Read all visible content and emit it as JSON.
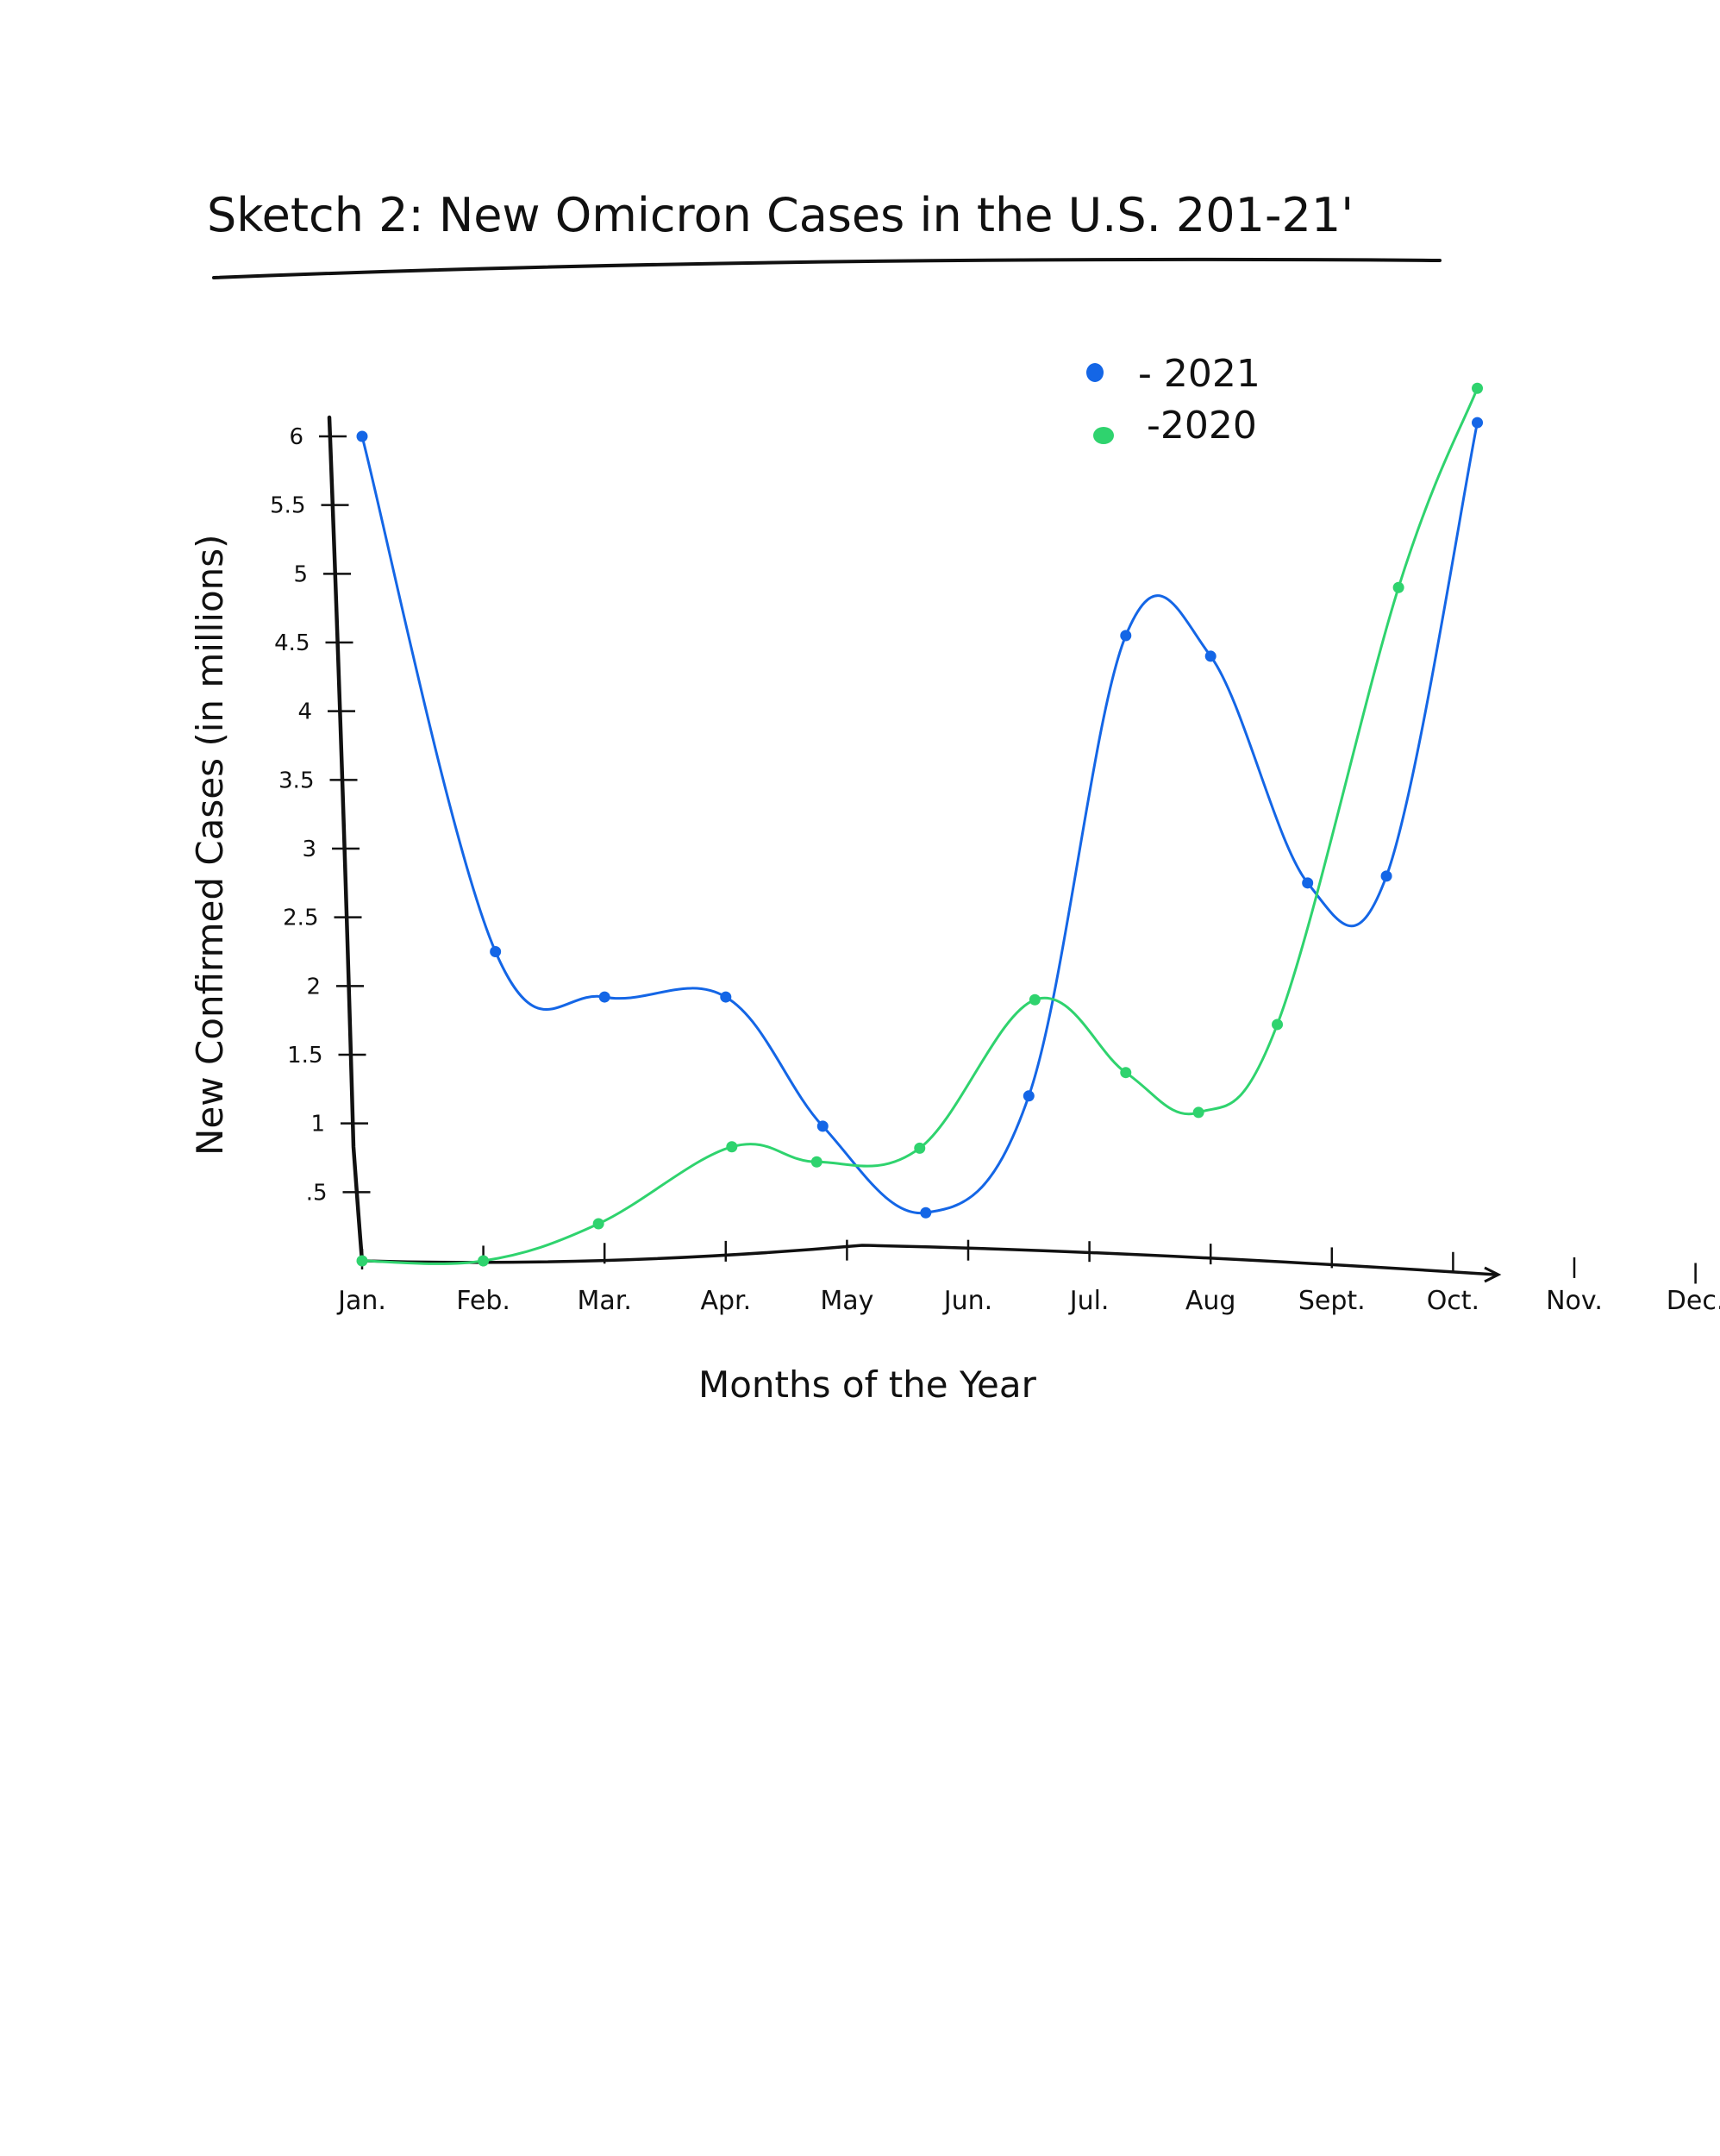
{
  "colors": {
    "s2021": "#1466e6",
    "s2020": "#2fd36e",
    "axis": "#111111"
  },
  "chart_data": {
    "type": "line",
    "title": "Sketch 2: New Omicron Cases in the U.S. 201-21'",
    "xlabel": "Months of the Year",
    "ylabel": "New Confirmed Cases (in millions)",
    "categories": [
      "Jan.",
      "Feb.",
      "Mar.",
      "Apr.",
      "May",
      "Jun.",
      "Jul.",
      "Aug",
      "Sept.",
      "Oct.",
      "Nov.",
      "Dec."
    ],
    "yticks": [
      {
        "value": 0.5,
        "label": ".5"
      },
      {
        "value": 1,
        "label": "1"
      },
      {
        "value": 1.5,
        "label": "1.5"
      },
      {
        "value": 2,
        "label": "2"
      },
      {
        "value": 2.5,
        "label": "2.5"
      },
      {
        "value": 3,
        "label": "3"
      },
      {
        "value": 3.5,
        "label": "3.5"
      },
      {
        "value": 4,
        "label": "4"
      },
      {
        "value": 4.5,
        "label": "4.5"
      },
      {
        "value": 5,
        "label": "5"
      },
      {
        "value": 5.5,
        "label": "5.5"
      },
      {
        "value": 6,
        "label": "6"
      }
    ],
    "ylim": [
      0,
      6.3
    ],
    "grid": false,
    "legend_position": "top-right",
    "series": [
      {
        "name": "2021",
        "label": "- 2021",
        "color": "#1466e6",
        "points": [
          {
            "x": 0.0,
            "y": 6.0
          },
          {
            "x": 1.1,
            "y": 2.25
          },
          {
            "x": 2.0,
            "y": 1.92
          },
          {
            "x": 3.0,
            "y": 1.92
          },
          {
            "x": 3.8,
            "y": 0.98
          },
          {
            "x": 4.65,
            "y": 0.35
          },
          {
            "x": 5.5,
            "y": 1.2
          },
          {
            "x": 6.3,
            "y": 4.55
          },
          {
            "x": 7.0,
            "y": 4.4
          },
          {
            "x": 7.8,
            "y": 2.75
          },
          {
            "x": 8.45,
            "y": 2.8
          },
          {
            "x": 9.2,
            "y": 6.1
          }
        ]
      },
      {
        "name": "2020",
        "label": "-2020",
        "color": "#2fd36e",
        "points": [
          {
            "x": 0.0,
            "y": 0.0
          },
          {
            "x": 1.0,
            "y": 0.0
          },
          {
            "x": 1.95,
            "y": 0.27
          },
          {
            "x": 3.05,
            "y": 0.83
          },
          {
            "x": 3.75,
            "y": 0.72
          },
          {
            "x": 4.6,
            "y": 0.82
          },
          {
            "x": 5.55,
            "y": 1.9
          },
          {
            "x": 6.3,
            "y": 1.37
          },
          {
            "x": 6.9,
            "y": 1.08
          },
          {
            "x": 7.55,
            "y": 1.72
          },
          {
            "x": 8.55,
            "y": 4.9
          },
          {
            "x": 9.2,
            "y": 6.35
          }
        ]
      }
    ]
  }
}
